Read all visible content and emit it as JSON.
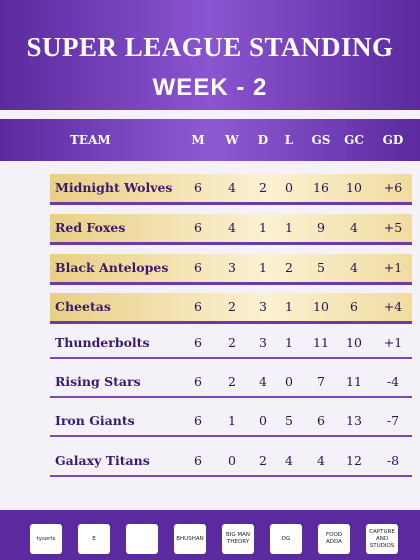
{
  "header": {
    "title": "SUPER LEAGUE STANDING",
    "subtitle": "WEEK - 2"
  },
  "table": {
    "columns": [
      "TEAM",
      "M",
      "W",
      "D",
      "L",
      "GS",
      "GC",
      "GD"
    ],
    "rows": [
      [
        "Midnight Wolves",
        "6",
        "4",
        "2",
        "0",
        "16",
        "10",
        "+6"
      ],
      [
        "Red Foxes",
        "6",
        "4",
        "1",
        "1",
        "9",
        "4",
        "+5"
      ],
      [
        "Black Antelopes",
        "6",
        "3",
        "1",
        "2",
        "5",
        "4",
        "+1"
      ],
      [
        "Cheetas",
        "6",
        "2",
        "3",
        "1",
        "10",
        "6",
        "+4"
      ],
      [
        "Thunderbolts",
        "6",
        "2",
        "3",
        "1",
        "11",
        "10",
        "+1"
      ],
      [
        "Rising Stars",
        "6",
        "2",
        "4",
        "0",
        "7",
        "11",
        "-4"
      ],
      [
        "Iron Giants",
        "6",
        "1",
        "0",
        "5",
        "6",
        "13",
        "-7"
      ],
      [
        "Galaxy Titans",
        "6",
        "0",
        "2",
        "4",
        "4",
        "12",
        "-8"
      ]
    ]
  },
  "sponsors": [
    "tysorts",
    "E",
    "",
    "BHUSHAN",
    "BIG MAN THEORY",
    "DG",
    "FOOD ADDA",
    "CAPTURE AND STUDIOS"
  ]
}
